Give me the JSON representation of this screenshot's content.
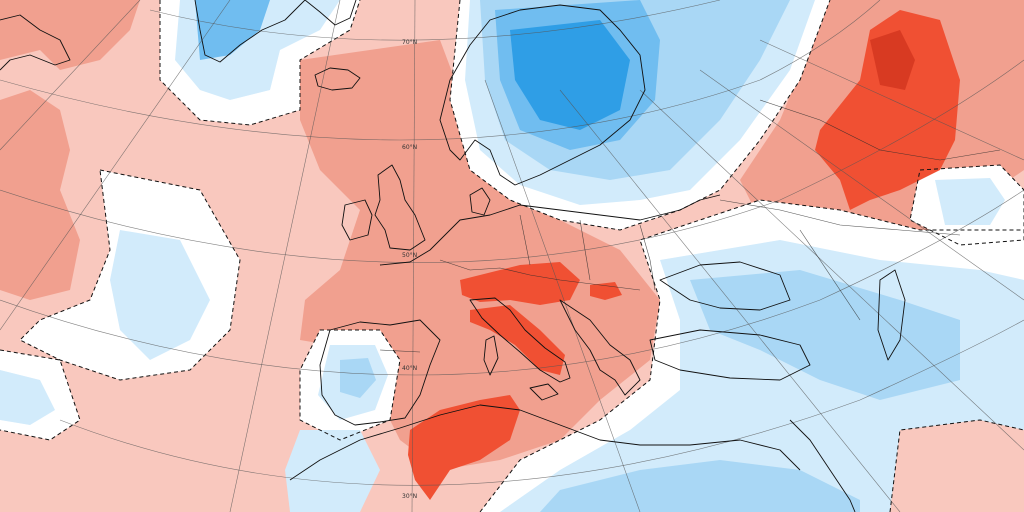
{
  "map": {
    "colors": {
      "warm_light": "#f9c8be",
      "warm_medium": "#f1a08f",
      "warm_strong": "#f05033",
      "warm_extreme": "#d83a22",
      "neutral": "#ffffff",
      "cool_light": "#d2ebfb",
      "cool_medium": "#a9d7f5",
      "cool_strong": "#70bdf0",
      "cool_extreme": "#2f9ee6"
    },
    "latitude_labels": [
      {
        "id": "lat-70",
        "text": "70°N"
      },
      {
        "id": "lat-60",
        "text": "60°N"
      },
      {
        "id": "lat-50",
        "text": "50°N"
      },
      {
        "id": "lat-40",
        "text": "40°N"
      },
      {
        "id": "lat-30",
        "text": "30°N"
      }
    ],
    "features": [
      {
        "id": "greenland",
        "icon": "landmass"
      },
      {
        "id": "iceland",
        "icon": "landmass"
      },
      {
        "id": "british-isles",
        "icon": "landmass"
      },
      {
        "id": "iberia",
        "icon": "landmass"
      },
      {
        "id": "scandinavia",
        "icon": "landmass"
      },
      {
        "id": "italy",
        "icon": "landmass"
      },
      {
        "id": "north-africa",
        "icon": "landmass"
      }
    ]
  }
}
